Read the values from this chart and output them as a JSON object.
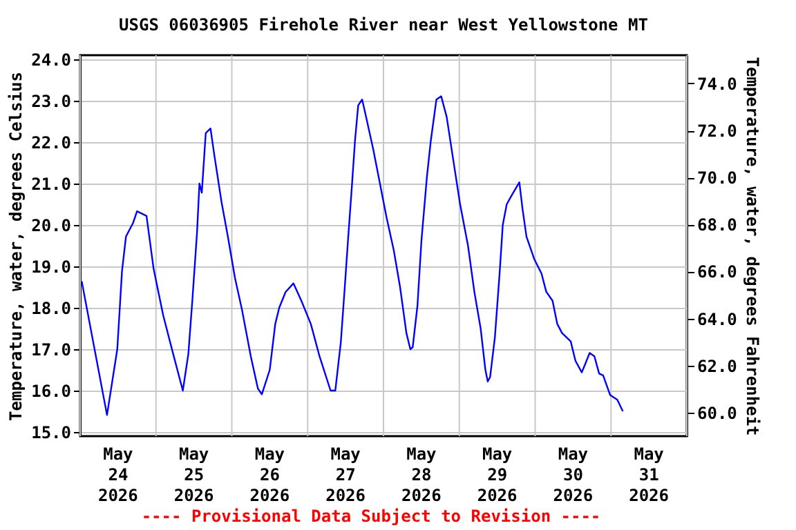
{
  "chart_data": {
    "type": "line",
    "title": "USGS 06036905 Firehole River near West Yellowstone MT",
    "ylabel": "Temperature, water, degrees Celsius",
    "y2label": "Temperature, water, degrees Fahrenheit",
    "annotations": [
      "---- Provisional Data Subject to Revision ----"
    ],
    "xlim": [
      "2026-05-24T00:00",
      "2026-06-01T00:00"
    ],
    "xticks": [
      {
        "value": "2026-05-24T00:00",
        "label": null
      },
      {
        "value": "2026-05-24T12:00",
        "label": "May 24 2026"
      },
      {
        "value": "2026-05-25T00:00",
        "label": null
      },
      {
        "value": "2026-05-25T12:00",
        "label": "May 25 2026"
      },
      {
        "value": "2026-05-26T00:00",
        "label": null
      },
      {
        "value": "2026-05-26T12:00",
        "label": "May 26 2026"
      },
      {
        "value": "2026-05-27T00:00",
        "label": null
      },
      {
        "value": "2026-05-27T12:00",
        "label": "May 27 2026"
      },
      {
        "value": "2026-05-28T00:00",
        "label": null
      },
      {
        "value": "2026-05-28T12:00",
        "label": "May 28 2026"
      },
      {
        "value": "2026-05-29T00:00",
        "label": null
      },
      {
        "value": "2026-05-29T12:00",
        "label": "May 29 2026"
      },
      {
        "value": "2026-05-30T00:00",
        "label": null
      },
      {
        "value": "2026-05-30T12:00",
        "label": "May 30 2026"
      },
      {
        "value": "2026-05-31T00:00",
        "label": null
      },
      {
        "value": "2026-05-31T12:00",
        "label": "May 31 2026"
      },
      {
        "value": "2026-06-01T00:00",
        "label": null
      }
    ],
    "ylim": [
      14.9,
      24.1
    ],
    "yticks": [
      {
        "value": 15,
        "label": "15.0"
      },
      {
        "value": 16,
        "label": "16.0"
      },
      {
        "value": 17,
        "label": "17.0"
      },
      {
        "value": 18,
        "label": "18.0"
      },
      {
        "value": 19,
        "label": "19.0"
      },
      {
        "value": 20,
        "label": "20.0"
      },
      {
        "value": 21,
        "label": "21.0"
      },
      {
        "value": 22,
        "label": "22.0"
      },
      {
        "value": 23,
        "label": "23.0"
      },
      {
        "value": 24,
        "label": "24.0"
      }
    ],
    "y2lim": [
      59.0,
      75.2
    ],
    "y2ticks": [
      {
        "value": 60,
        "label": "60.0"
      },
      {
        "value": 62,
        "label": "62.0"
      },
      {
        "value": 64,
        "label": "64.0"
      },
      {
        "value": 66,
        "label": "66.0"
      },
      {
        "value": 68,
        "label": "68.0"
      },
      {
        "value": 70,
        "label": "70.0"
      },
      {
        "value": 72,
        "label": "72.0"
      },
      {
        "value": 74,
        "label": "74.0"
      }
    ],
    "grid": true,
    "series": [
      {
        "color": "#0000ff",
        "x": [
          "2026-05-24T00:30",
          "2026-05-24T08:30",
          "2026-05-24T11:45",
          "2026-05-24T13:15",
          "2026-05-24T14:30",
          "2026-05-24T16:45",
          "2026-05-24T18:00",
          "2026-05-24T21:00",
          "2026-05-24T23:15",
          "2026-05-25T02:15",
          "2026-05-25T05:15",
          "2026-05-25T08:30",
          "2026-05-25T10:15",
          "2026-05-25T11:30",
          "2026-05-25T13:00",
          "2026-05-25T13:45",
          "2026-05-25T14:30",
          "2026-05-25T15:45",
          "2026-05-25T17:15",
          "2026-05-25T18:30",
          "2026-05-25T20:45",
          "2026-05-25T22:45",
          "2026-05-26T01:00",
          "2026-05-26T03:15",
          "2026-05-26T06:00",
          "2026-05-26T08:15",
          "2026-05-26T09:30",
          "2026-05-26T12:00",
          "2026-05-26T13:45",
          "2026-05-26T15:00",
          "2026-05-26T17:00",
          "2026-05-26T19:30",
          "2026-05-26T22:00",
          "2026-05-27T01:00",
          "2026-05-27T03:45",
          "2026-05-27T07:15",
          "2026-05-27T08:45",
          "2026-05-27T10:30",
          "2026-05-27T11:45",
          "2026-05-27T12:45",
          "2026-05-27T14:00",
          "2026-05-27T15:00",
          "2026-05-27T16:00",
          "2026-05-27T17:15",
          "2026-05-27T18:30",
          "2026-05-27T20:45",
          "2026-05-27T22:45",
          "2026-05-28T01:00",
          "2026-05-28T03:15",
          "2026-05-28T05:15",
          "2026-05-28T07:15",
          "2026-05-28T08:30",
          "2026-05-28T09:15",
          "2026-05-28T10:45",
          "2026-05-28T12:00",
          "2026-05-28T13:45",
          "2026-05-28T15:00",
          "2026-05-28T16:45",
          "2026-05-28T18:15",
          "2026-05-28T20:00",
          "2026-05-28T22:00",
          "2026-05-29T00:15",
          "2026-05-29T02:45",
          "2026-05-29T04:45",
          "2026-05-29T06:45",
          "2026-05-29T08:15",
          "2026-05-29T09:00",
          "2026-05-29T09:45",
          "2026-05-29T11:15",
          "2026-05-29T12:45",
          "2026-05-29T13:45",
          "2026-05-29T15:00",
          "2026-05-29T16:45",
          "2026-05-29T19:00",
          "2026-05-29T20:00",
          "2026-05-29T21:15",
          "2026-05-29T23:45",
          "2026-05-30T02:00",
          "2026-05-30T03:30",
          "2026-05-30T05:30",
          "2026-05-30T07:00",
          "2026-05-30T08:30",
          "2026-05-30T11:15",
          "2026-05-30T12:45",
          "2026-05-30T14:45",
          "2026-05-30T16:00",
          "2026-05-30T17:15",
          "2026-05-30T18:45",
          "2026-05-30T20:15",
          "2026-05-30T21:30",
          "2026-05-30T23:45",
          "2026-05-31T02:00",
          "2026-05-31T03:45"
        ],
        "values": [
          18.64,
          15.41,
          17.0,
          18.89,
          19.72,
          20.05,
          20.33,
          20.22,
          18.94,
          17.83,
          16.94,
          16.0,
          16.89,
          18.17,
          19.83,
          21.0,
          20.78,
          22.22,
          22.33,
          21.67,
          20.55,
          19.72,
          18.72,
          17.94,
          16.83,
          16.05,
          15.91,
          16.5,
          17.61,
          18.0,
          18.38,
          18.59,
          18.17,
          17.61,
          16.83,
          16.0,
          16.0,
          17.17,
          18.5,
          19.61,
          20.94,
          22.05,
          22.89,
          23.03,
          22.61,
          21.83,
          21.05,
          20.17,
          19.39,
          18.5,
          17.39,
          17.0,
          17.05,
          18.05,
          19.61,
          21.17,
          22.05,
          23.03,
          23.11,
          22.61,
          21.61,
          20.5,
          19.5,
          18.39,
          17.5,
          16.5,
          16.22,
          16.33,
          17.28,
          18.83,
          20.0,
          20.5,
          20.74,
          21.03,
          20.39,
          19.72,
          19.17,
          18.83,
          18.39,
          18.17,
          17.61,
          17.39,
          17.19,
          16.72,
          16.44,
          16.67,
          16.91,
          16.83,
          16.41,
          16.37,
          15.89,
          15.78,
          15.5
        ]
      }
    ]
  }
}
